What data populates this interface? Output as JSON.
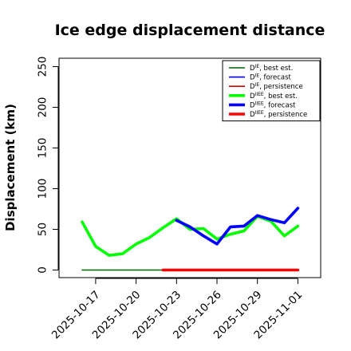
{
  "chart_data": {
    "type": "line",
    "title": "Ice edge displacement distance",
    "xlabel": "",
    "ylabel": "Displacement (km)",
    "ylim": [
      0,
      250
    ],
    "yticks": [
      0,
      50,
      100,
      150,
      200,
      250
    ],
    "x_dates": [
      "2025-10-16",
      "2025-10-17",
      "2025-10-18",
      "2025-10-19",
      "2025-10-20",
      "2025-10-21",
      "2025-10-22",
      "2025-10-23",
      "2025-10-24",
      "2025-10-25",
      "2025-10-26",
      "2025-10-27",
      "2025-10-28",
      "2025-10-29",
      "2025-10-30",
      "2025-10-31",
      "2025-11-01"
    ],
    "xticks": [
      "2025-10-17",
      "2025-10-20",
      "2025-10-23",
      "2025-10-26",
      "2025-10-29",
      "2025-11-01"
    ],
    "highlight_tick": "2025-10-23",
    "highlight_color": "#228B22",
    "grid": false,
    "legend_position": "top-right",
    "series": [
      {
        "name": "D^IE best est.",
        "name_base": "D",
        "name_sup": "IE",
        "name_rest": ", best est.",
        "color": "#006400",
        "width": "thin",
        "x": [
          "2025-10-16",
          "2025-10-22"
        ],
        "values": [
          0,
          0
        ]
      },
      {
        "name": "D^IE forecast",
        "name_base": "D",
        "name_sup": "IE",
        "name_rest": ", forecast",
        "color": "#0000ff",
        "width": "thin",
        "x": [],
        "values": []
      },
      {
        "name": "D^IE persistence",
        "name_base": "D",
        "name_sup": "IE",
        "name_rest": ", persistence",
        "color": "#cc0000",
        "width": "thin",
        "x": [
          "2025-10-22",
          "2025-11-01"
        ],
        "values": [
          0,
          0
        ]
      },
      {
        "name": "D^IIEE best est.",
        "name_base": "D",
        "name_sup": "IIEE",
        "name_rest": ", best est.",
        "color": "#00ff00",
        "width": "thick",
        "x": [
          "2025-10-16",
          "2025-10-17",
          "2025-10-18",
          "2025-10-19",
          "2025-10-20",
          "2025-10-21",
          "2025-10-22",
          "2025-10-23",
          "2025-10-24",
          "2025-10-25",
          "2025-10-26",
          "2025-10-27",
          "2025-10-28",
          "2025-10-29",
          "2025-10-30",
          "2025-10-31",
          "2025-11-01"
        ],
        "values": [
          59,
          29,
          18,
          20,
          32,
          40,
          52,
          63,
          50,
          51,
          38,
          44,
          48,
          66,
          60,
          42,
          54
        ]
      },
      {
        "name": "D^IIEE forecast",
        "name_base": "D",
        "name_sup": "IIEE",
        "name_rest": ", forecast",
        "color": "#0000ff",
        "width": "thick",
        "x": [
          "2025-10-23",
          "2025-10-24",
          "2025-10-25",
          "2025-10-26",
          "2025-10-27",
          "2025-10-28",
          "2025-10-29",
          "2025-10-30",
          "2025-10-31",
          "2025-11-01"
        ],
        "values": [
          61,
          53,
          42,
          32,
          53,
          54,
          67,
          62,
          58,
          76
        ]
      },
      {
        "name": "D^IIEE persistence",
        "name_base": "D",
        "name_sup": "IIEE",
        "name_rest": ", persistence",
        "color": "#ff0000",
        "width": "thick",
        "x": [
          "2025-10-22",
          "2025-11-01"
        ],
        "values": [
          0,
          0
        ]
      }
    ]
  }
}
